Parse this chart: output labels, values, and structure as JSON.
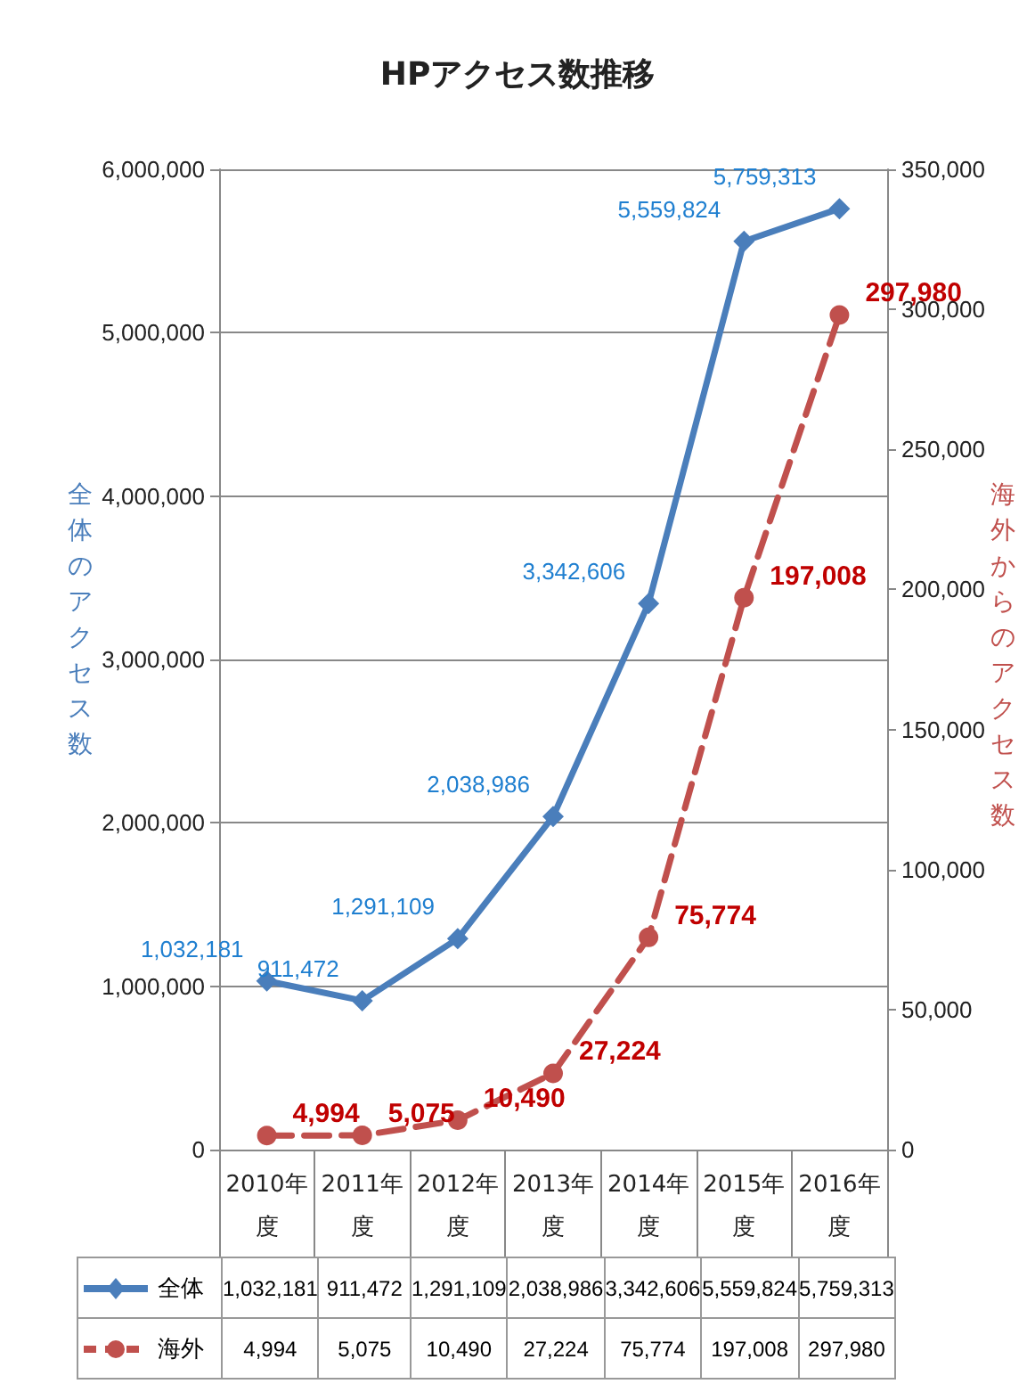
{
  "chart_data": {
    "type": "line",
    "title": "HPアクセス数推移",
    "ylabel": "全体のアクセス数",
    "y2label": "海外からのアクセス数",
    "categories": [
      "2010年度",
      "2011年度",
      "2012年度",
      "2013年度",
      "2014年度",
      "2015年度",
      "2016年度"
    ],
    "series": [
      {
        "name": "全体",
        "color": "#4a7ebb",
        "values": [
          1032181,
          911472,
          1291109,
          2038986,
          3342606,
          5559824,
          5759313
        ],
        "value_labels": [
          "1,032,181",
          "911,472",
          "1,291,109",
          "2,038,986",
          "3,342,606",
          "5,559,824",
          "5,759,313"
        ],
        "marker": "diamond",
        "line_style": "solid"
      },
      {
        "name": "海外",
        "color": "#c0504d",
        "axis": "y2",
        "values": [
          4994,
          5075,
          10490,
          27224,
          75774,
          197008,
          297980
        ],
        "value_labels": [
          "4,994",
          "5,075",
          "10,490",
          "27,224",
          "75,774",
          "197,008",
          "297,980"
        ],
        "marker": "circle",
        "line_style": "dashed"
      }
    ],
    "ylim": [
      0,
      6000000
    ],
    "yticks": [
      0,
      {
        "value": 1000000,
        "label": "1,000,000"
      },
      {
        "value": 2000000,
        "label": "2,000,000"
      },
      {
        "value": 3000000,
        "label": "3,000,000"
      },
      {
        "value": 4000000,
        "label": "4,000,000"
      },
      {
        "value": 5000000,
        "label": "5,000,000"
      },
      {
        "value": 6000000,
        "label": "6,000,000"
      }
    ],
    "y2lim": [
      0,
      350000
    ],
    "y2ticks": [
      0,
      {
        "value": 50000,
        "label": "50,000"
      },
      {
        "value": 100000,
        "label": "100,000"
      },
      {
        "value": 150000,
        "label": "150,000"
      },
      {
        "value": 200000,
        "label": "200,000"
      },
      {
        "value": 250000,
        "label": "250,000"
      },
      {
        "value": 300000,
        "label": "300,000"
      },
      {
        "value": 350000,
        "label": "350,000"
      }
    ],
    "grid": "y",
    "legend": "bottom"
  }
}
